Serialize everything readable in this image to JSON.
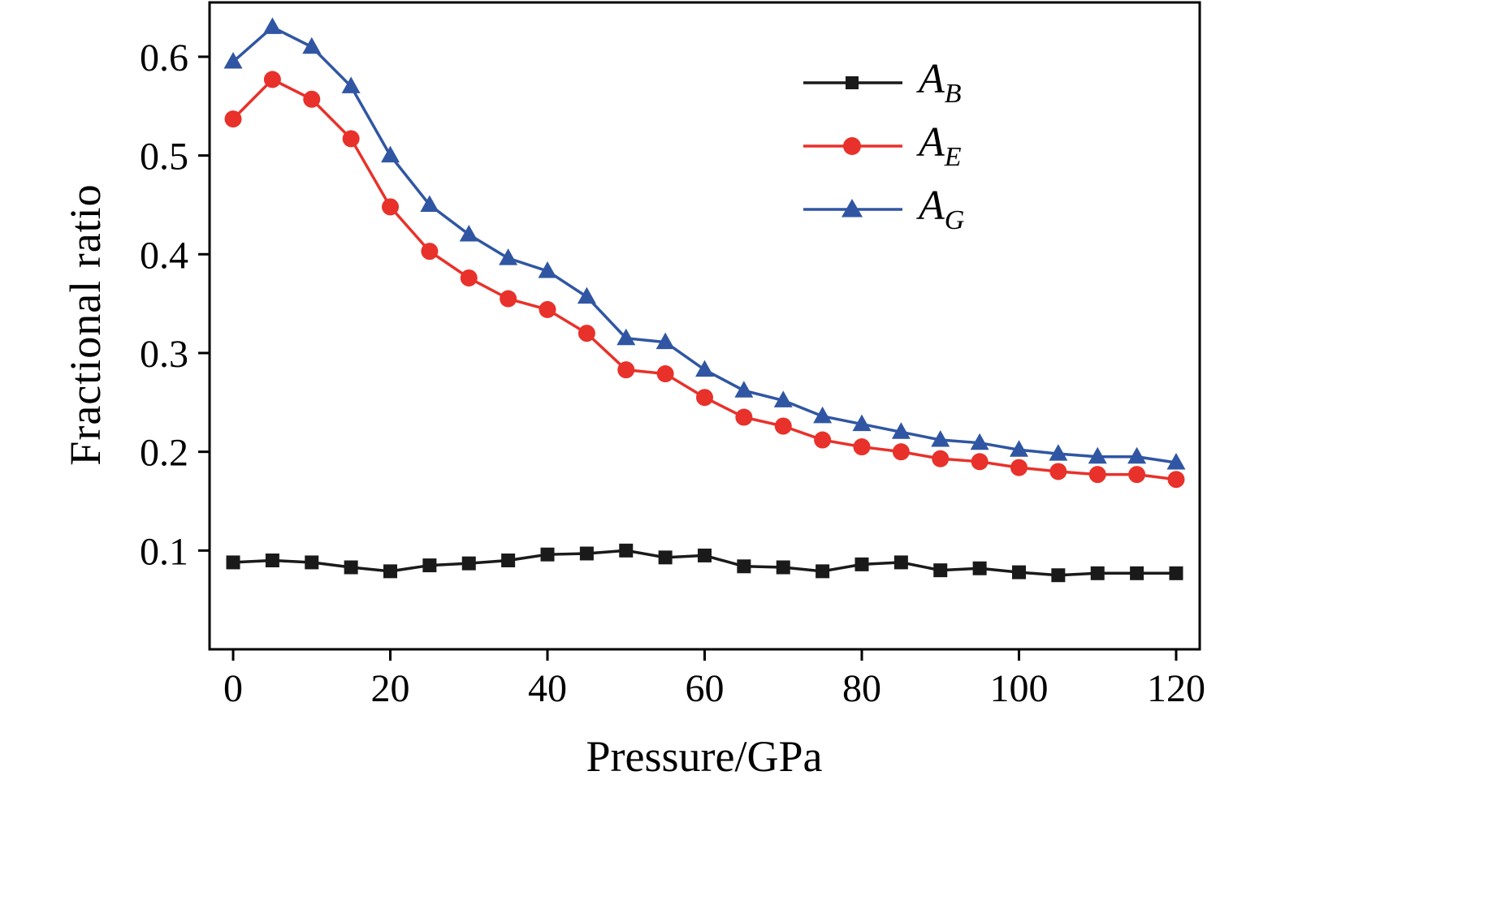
{
  "chart_data": {
    "type": "line",
    "title": "",
    "xlabel": "Pressure/GPa",
    "ylabel": "Fractional ratio",
    "xlim": [
      -3,
      123
    ],
    "ylim": [
      0,
      0.655
    ],
    "xticks": [
      0,
      20,
      40,
      60,
      80,
      100,
      120
    ],
    "yticks": [
      0.1,
      0.2,
      0.3,
      0.4,
      0.5,
      0.6
    ],
    "grid": false,
    "legend_position": "upper right",
    "x": [
      0,
      5,
      10,
      15,
      20,
      25,
      30,
      35,
      40,
      45,
      50,
      55,
      60,
      65,
      70,
      75,
      80,
      85,
      90,
      95,
      100,
      105,
      110,
      115,
      120
    ],
    "series": [
      {
        "name": "A_B",
        "label_main": "A",
        "label_sub": "B",
        "marker": "square",
        "color": "#1a1a1a",
        "values": [
          0.088,
          0.09,
          0.088,
          0.083,
          0.079,
          0.085,
          0.087,
          0.09,
          0.096,
          0.097,
          0.1,
          0.093,
          0.095,
          0.084,
          0.083,
          0.079,
          0.086,
          0.088,
          0.08,
          0.082,
          0.078,
          0.075,
          0.077,
          0.077,
          0.077
        ]
      },
      {
        "name": "A_E",
        "label_main": "A",
        "label_sub": "E",
        "marker": "circle",
        "color": "#e8312a",
        "values": [
          0.537,
          0.577,
          0.557,
          0.517,
          0.448,
          0.403,
          0.376,
          0.355,
          0.344,
          0.32,
          0.283,
          0.279,
          0.255,
          0.235,
          0.226,
          0.212,
          0.205,
          0.2,
          0.193,
          0.19,
          0.184,
          0.18,
          0.177,
          0.177,
          0.172
        ]
      },
      {
        "name": "A_G",
        "label_main": "A",
        "label_sub": "G",
        "marker": "triangle",
        "color": "#3056a3",
        "values": [
          0.595,
          0.63,
          0.61,
          0.57,
          0.5,
          0.45,
          0.42,
          0.396,
          0.383,
          0.357,
          0.315,
          0.311,
          0.283,
          0.262,
          0.252,
          0.236,
          0.228,
          0.22,
          0.212,
          0.209,
          0.202,
          0.198,
          0.195,
          0.195,
          0.189
        ]
      }
    ]
  }
}
